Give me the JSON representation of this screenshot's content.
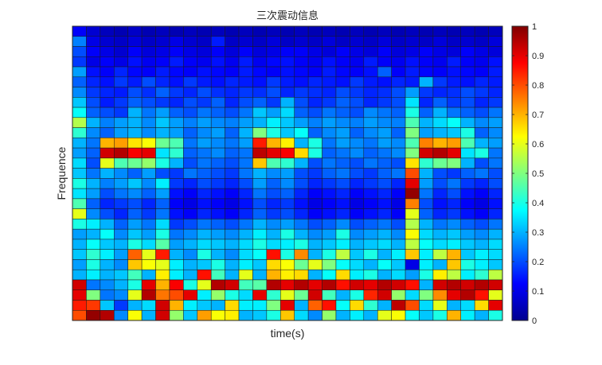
{
  "chart_data": {
    "type": "heatmap",
    "title": "三次震动信息",
    "xlabel": "time(s)",
    "ylabel": "Frequence",
    "colormap": "jet",
    "clim": [
      0,
      1
    ],
    "colorbar": {
      "position": "right",
      "ticks": [
        "0",
        "0.1",
        "0.2",
        "0.3",
        "0.4",
        "0.5",
        "0.6",
        "0.7",
        "0.8",
        "0.9",
        "1"
      ]
    },
    "n_cols": 31,
    "n_rows": 29,
    "rows_top_to_bottom": [
      "0.12,0.08,0.06,0.05,0.07,0.05,0.06,0.05,0.06,0.05,0.06,0.05,0.06,0.05,0.06,0.05,0.06,0.05,0.06,0.05,0.06,0.05,0.06,0.05,0.06,0.05,0.06,0.05,0.06,0.05,0.06",
      "0.25,0.10,0.08,0.07,0.09,0.07,0.08,0.10,0.08,0.07,0.15,0.07,0.08,0.07,0.09,0.07,0.08,0.07,0.09,0.07,0.08,0.07,0.09,0.07,0.08,0.07,0.09,0.07,0.08,0.07,0.09",
      "0.20,0.12,0.10,0.08,0.12,0.09,0.10,0.12,0.10,0.09,0.12,0.09,0.12,0.09,0.10,0.12,0.12,0.10,0.09,0.12,0.10,0.09,0.12,0.09,0.10,0.12,0.10,0.09,0.12,0.10,0.09",
      "0.18,0.10,0.12,0.10,0.14,0.11,0.12,0.15,0.12,0.11,0.14,0.11,0.15,0.11,0.13,0.14,0.12,0.11,0.14,0.12,0.11,0.15,0.12,0.11,0.14,0.12,0.11,0.15,0.12,0.11,0.14",
      "0.28,0.14,0.12,0.16,0.13,0.12,0.15,0.13,0.12,0.14,0.13,0.12,0.15,0.13,0.12,0.14,0.13,0.12,0.15,0.13,0.12,0.14,0.22,0.12,0.15,0.13,0.12,0.14,0.13,0.12,0.15",
      "0.22,0.16,0.14,0.18,0.15,0.20,0.16,0.14,0.18,0.15,0.14,0.16,0.15,0.14,0.18,0.15,0.14,0.16,0.15,0.14,0.18,0.15,0.14,0.16,0.15,0.30,0.18,0.15,0.14,0.16,0.15",
      "0.26,0.18,0.16,0.15,0.20,0.17,0.22,0.18,0.16,0.20,0.17,0.16,0.18,0.17,0.20,0.16,0.18,0.17,0.16,0.20,0.18,0.16,0.17,0.20,0.28,0.18,0.16,0.17,0.20,0.18,0.16",
      "0.32,0.20,0.15,0.18,0.22,0.20,0.18,0.16,0.20,0.18,0.22,0.16,0.20,0.22,0.18,0.30,0.20,0.16,0.18,0.22,0.20,0.16,0.18,0.20,0.35,0.16,0.22,0.18,0.20,0.16,0.18",
      "0.38,0.22,0.20,0.18,0.30,0.24,0.28,0.22,0.20,0.24,0.22,0.20,0.24,0.32,0.28,0.34,0.22,0.20,0.24,0.22,0.20,0.26,0.24,0.22,0.40,0.22,0.30,0.24,0.22,0.20,0.24",
      "0.55,0.30,0.25,0.28,0.30,0.26,0.32,0.28,0.25,0.28,0.26,0.25,0.28,0.30,0.36,0.32,0.28,0.25,0.28,0.26,0.25,0.28,0.26,0.25,0.45,0.30,0.34,0.38,0.30,0.26,0.28",
      "0.42,0.26,0.22,0.28,0.30,0.26,0.30,0.28,0.22,0.26,0.28,0.22,0.30,0.50,0.40,0.32,0.38,0.22,0.26,0.28,0.22,0.26,0.28,0.22,0.50,0.28,0.30,0.32,0.40,0.22,0.26",
      "0.30,0.24,0.70,0.72,0.65,0.62,0.48,0.45,0.24,0.28,0.26,0.24,0.28,0.85,0.70,0.64,0.30,0.40,0.24,0.28,0.26,0.24,0.28,0.26,0.45,0.75,0.70,0.72,0.45,0.30,0.28",
      "0.28,0.22,0.92,0.95,0.88,0.90,0.35,0.42,0.22,0.24,0.26,0.22,0.24,0.94,0.90,0.88,0.66,0.40,0.22,0.24,0.26,0.22,0.24,0.26,0.50,0.92,0.95,0.90,0.35,0.40,0.24",
      "0.34,0.20,0.60,0.45,0.48,0.52,0.40,0.30,0.20,0.24,0.22,0.20,0.24,0.68,0.45,0.42,0.30,0.20,0.24,0.22,0.20,0.24,0.22,0.20,0.65,0.42,0.48,0.50,0.30,0.20,0.24",
      "0.32,0.24,0.30,0.26,0.22,0.28,0.20,0.18,0.24,0.22,0.20,0.18,0.24,0.30,0.26,0.28,0.20,0.18,0.22,0.24,0.20,0.18,0.22,0.24,0.80,0.30,0.20,0.18,0.22,0.24,0.20",
      "0.40,0.30,0.25,0.28,0.32,0.26,0.36,0.18,0.16,0.20,0.18,0.16,0.20,0.28,0.22,0.26,0.20,0.16,0.18,0.20,0.16,0.18,0.20,0.16,0.90,0.28,0.20,0.24,0.18,0.16,0.20",
      "0.35,0.28,0.20,0.24,0.26,0.22,0.28,0.14,0.12,0.16,0.14,0.12,0.16,0.24,0.20,0.22,0.16,0.12,0.14,0.16,0.12,0.14,0.16,0.12,0.98,0.24,0.16,0.20,0.14,0.12,0.16",
      "0.45,0.22,0.16,0.18,0.20,0.16,0.22,0.12,0.10,0.14,0.12,0.10,0.14,0.20,0.16,0.18,0.14,0.10,0.12,0.14,0.10,0.12,0.14,0.10,0.75,0.20,0.14,0.16,0.12,0.10,0.14",
      "0.60,0.26,0.20,0.16,0.22,0.18,0.24,0.14,0.12,0.16,0.14,0.12,0.16,0.22,0.18,0.20,0.16,0.12,0.14,0.16,0.12,0.14,0.16,0.12,0.60,0.22,0.16,0.18,0.14,0.12,0.16",
      "0.40,0.36,0.30,0.22,0.28,0.24,0.34,0.18,0.20,0.24,0.22,0.20,0.24,0.30,0.26,0.28,0.24,0.20,0.22,0.26,0.20,0.22,0.24,0.20,0.55,0.30,0.24,0.26,0.22,0.20,0.24",
      "0.28,0.30,0.38,0.26,0.32,0.28,0.40,0.24,0.26,0.30,0.28,0.26,0.30,0.36,0.30,0.40,0.30,0.26,0.28,0.40,0.26,0.28,0.30,0.26,0.62,0.34,0.30,0.32,0.28,0.26,0.30",
      "0.30,0.38,0.32,0.30,0.40,0.34,0.46,0.28,0.30,0.34,0.32,0.30,0.34,0.40,0.34,0.36,0.40,0.30,0.32,0.36,0.30,0.32,0.34,0.30,0.56,0.38,0.34,0.36,0.32,0.30,0.34",
      "0.32,0.42,0.36,0.28,0.78,0.60,0.85,0.30,0.26,0.40,0.30,0.26,0.34,0.38,0.86,0.40,0.74,0.30,0.40,0.56,0.32,0.40,0.30,0.36,0.68,0.36,0.56,0.70,0.32,0.36,0.34",
      "0.28,0.40,0.30,0.26,0.68,0.62,0.60,0.36,0.30,0.32,0.40,0.30,0.36,0.32,0.66,0.62,0.48,0.60,0.50,0.38,0.34,0.30,0.38,0.32,0.10,0.36,0.30,0.68,0.40,0.36,0.32",
      "0.30,0.36,0.30,0.32,0.44,0.30,0.64,0.36,0.30,0.86,0.44,0.30,0.60,0.30,0.70,0.64,0.66,0.30,0.38,0.66,0.36,0.40,0.30,0.34,0.28,0.40,0.64,0.56,0.36,0.42,0.56",
      "0.92,0.24,0.26,0.30,0.40,0.90,0.70,0.88,0.40,0.60,0.95,0.92,0.44,0.46,0.95,0.90,0.95,0.90,0.95,0.86,0.92,0.90,0.95,0.92,0.86,0.30,0.92,0.95,0.92,0.95,0.92",
      "0.90,0.50,0.24,0.26,0.60,0.95,0.76,0.80,0.90,0.36,0.52,0.40,0.34,0.90,0.42,0.60,0.48,0.92,0.44,0.30,0.40,0.84,0.92,0.52,0.34,0.50,0.74,0.90,0.95,0.86,0.60",
      "0.85,0.82,0.32,0.18,0.30,0.34,0.92,0.70,0.36,0.32,0.30,0.66,0.36,0.36,0.50,0.90,0.30,0.78,0.86,0.38,0.66,0.42,0.30,0.94,0.80,0.34,0.60,0.30,0.34,0.66,0.90",
      "0.80,0.98,0.95,0.26,0.62,0.30,0.92,0.52,0.32,0.72,0.62,0.64,0.30,0.32,0.40,0.68,0.34,0.26,0.52,0.30,0.36,0.30,0.60,0.62,0.38,0.32,0.40,0.70,0.36,0.30,0.40"
    ]
  }
}
